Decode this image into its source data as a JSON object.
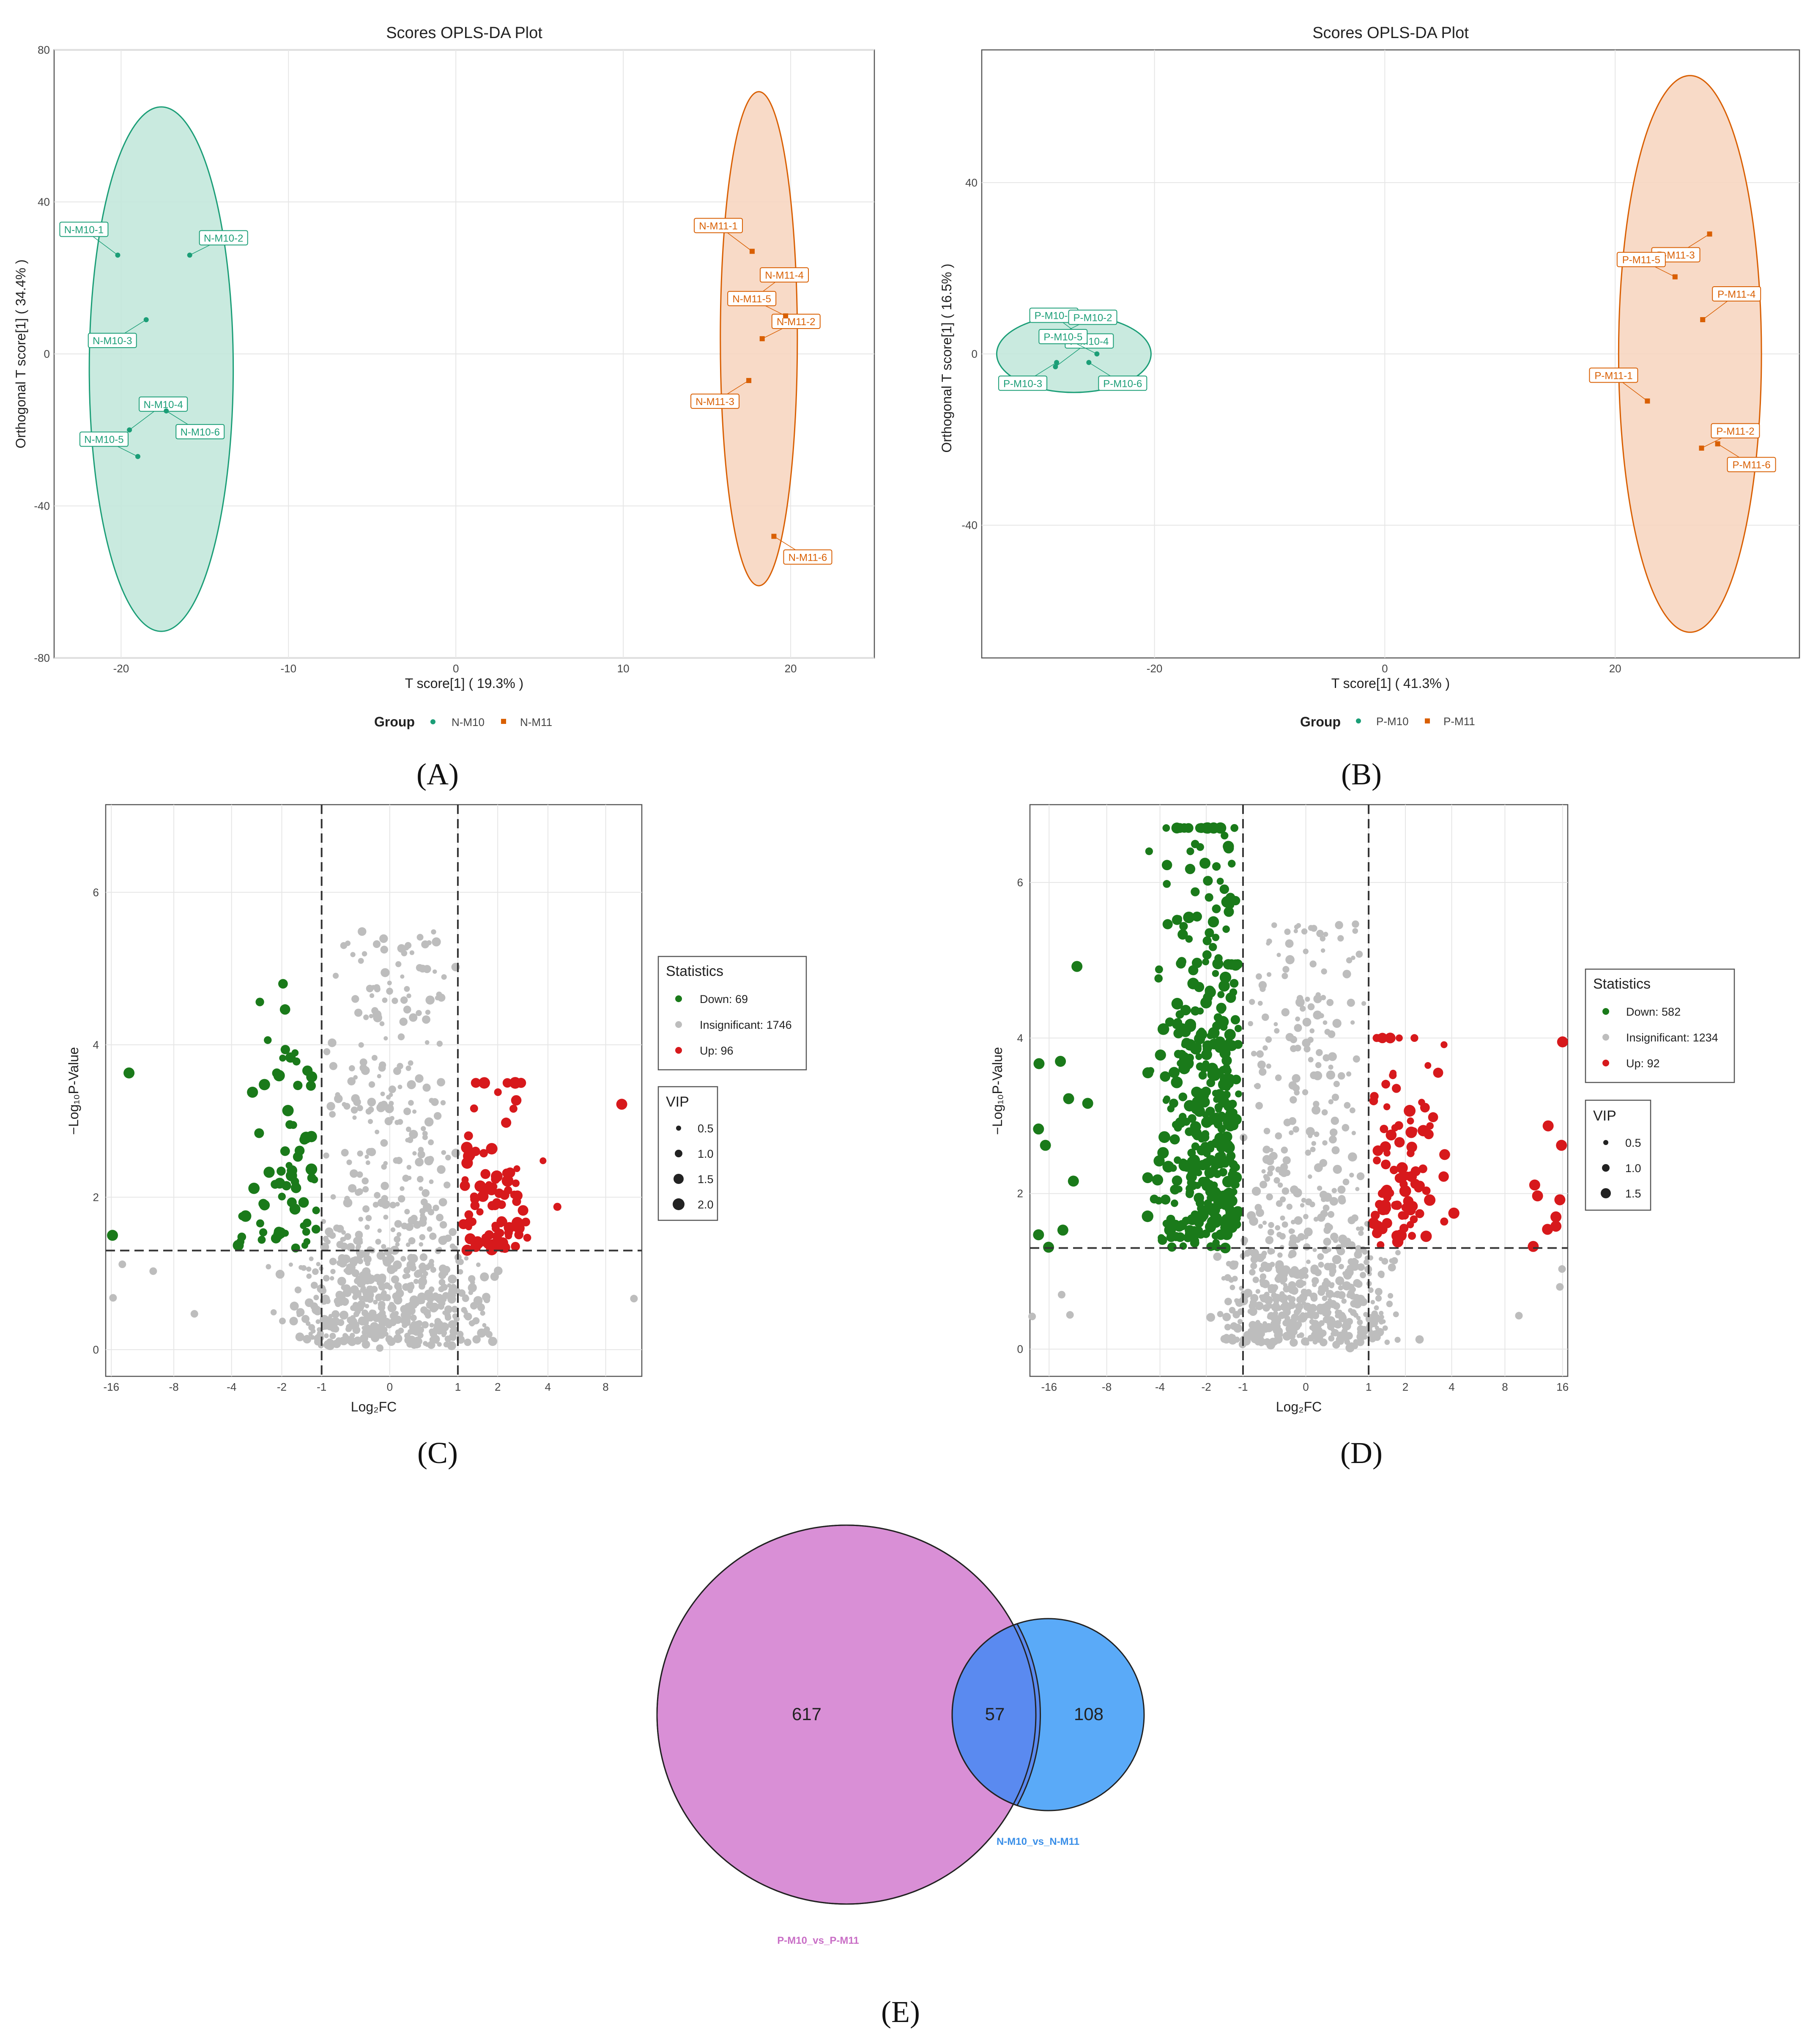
{
  "panels": {
    "A": {
      "label": "(A)"
    },
    "B": {
      "label": "(B)"
    },
    "C": {
      "label": "(C)"
    },
    "D": {
      "label": "(D)"
    },
    "E": {
      "label": "(E)"
    }
  },
  "colors": {
    "green": "#1b9e77",
    "orange": "#d95f02",
    "down": "#1a7a1a",
    "insig": "#bdbdbd",
    "up": "#d7191c",
    "pink": "#d98fd6",
    "blue": "#5aaaf8",
    "overlap": "#5a8af0"
  },
  "chart_data": [
    {
      "id": "A",
      "type": "scatter",
      "title": "Scores OPLS-DA Plot",
      "xlabel": "T score[1] ( 19.3% )",
      "ylabel": "Orthogonal T score[1] ( 34.4% )",
      "xlim": [
        -24,
        25
      ],
      "ylim": [
        -80,
        80
      ],
      "xticks": [
        -20,
        -10,
        0,
        10,
        20
      ],
      "yticks": [
        -80,
        -40,
        0,
        40,
        80
      ],
      "legend_title": "Group",
      "groups": [
        {
          "name": "N-M10",
          "points": [
            {
              "label": "N-M10-1",
              "x": -20.2,
              "y": 26
            },
            {
              "label": "N-M10-2",
              "x": -15.9,
              "y": 26
            },
            {
              "label": "N-M10-3",
              "x": -18.5,
              "y": 9
            },
            {
              "label": "N-M10-4",
              "x": -19.5,
              "y": -20
            },
            {
              "label": "N-M10-5",
              "x": -19.0,
              "y": -27
            },
            {
              "label": "N-M10-6",
              "x": -17.3,
              "y": -15
            }
          ]
        },
        {
          "name": "N-M11",
          "points": [
            {
              "label": "N-M11-1",
              "x": 17.7,
              "y": 27
            },
            {
              "label": "N-M11-2",
              "x": 18.3,
              "y": 4
            },
            {
              "label": "N-M11-3",
              "x": 17.5,
              "y": -7
            },
            {
              "label": "N-M11-4",
              "x": 17.6,
              "y": 14
            },
            {
              "label": "N-M11-5",
              "x": 19.7,
              "y": 10
            },
            {
              "label": "N-M11-6",
              "x": 19.0,
              "y": -48
            }
          ]
        }
      ],
      "ellipses": [
        {
          "group": "N-M10",
          "cx": -17.6,
          "cy": -4,
          "rx": 4.3,
          "ry": 69
        },
        {
          "group": "N-M11",
          "cx": 18.1,
          "cy": 4,
          "rx": 2.3,
          "ry": 65
        }
      ]
    },
    {
      "id": "B",
      "type": "scatter",
      "title": "Scores OPLS-DA Plot",
      "xlabel": "T score[1] ( 41.3% )",
      "ylabel": "Orthogonal T score[1] ( 16.5% )",
      "xlim": [
        -35,
        36
      ],
      "ylim": [
        -71,
        71
      ],
      "xticks": [
        -20,
        0,
        20
      ],
      "yticks": [
        -40,
        0,
        40
      ],
      "legend_title": "Group",
      "groups": [
        {
          "name": "P-M10",
          "points": [
            {
              "label": "P-M10-1",
              "x": -25.8,
              "y": 3
            },
            {
              "label": "P-M10-2",
              "x": -28.3,
              "y": 4.5
            },
            {
              "label": "P-M10-3",
              "x": -28.5,
              "y": -2
            },
            {
              "label": "P-M10-4",
              "x": -28.6,
              "y": -3
            },
            {
              "label": "P-M10-5",
              "x": -25.0,
              "y": 0
            },
            {
              "label": "P-M10-6",
              "x": -25.7,
              "y": -2
            }
          ]
        },
        {
          "name": "P-M11",
          "points": [
            {
              "label": "P-M11-1",
              "x": 22.8,
              "y": -11
            },
            {
              "label": "P-M11-2",
              "x": 27.5,
              "y": -22
            },
            {
              "label": "P-M11-3",
              "x": 28.2,
              "y": 28
            },
            {
              "label": "P-M11-4",
              "x": 27.6,
              "y": 8
            },
            {
              "label": "P-M11-5",
              "x": 25.2,
              "y": 18
            },
            {
              "label": "P-M11-6",
              "x": 28.9,
              "y": -21
            }
          ]
        }
      ],
      "ellipses": [
        {
          "group": "P-M10",
          "cx": -27,
          "cy": 0,
          "rx": 6.7,
          "ry": 9
        },
        {
          "group": "P-M11",
          "cx": 26.5,
          "cy": 0,
          "rx": 6.2,
          "ry": 65
        }
      ]
    },
    {
      "id": "C",
      "type": "scatter",
      "xlabel": "Log₂FC",
      "ylabel": "−Log₁₀P-Value",
      "xlim": [
        -17,
        12
      ],
      "ylim": [
        -0.35,
        7.15
      ],
      "xticks": [
        -16,
        -8,
        -4,
        -2,
        -1,
        0,
        1,
        2,
        4,
        8
      ],
      "yticks": [
        0,
        2,
        4,
        6
      ],
      "hline": 1.3,
      "vlines": [
        -1,
        1
      ],
      "legend": {
        "title": "Statistics",
        "entries": [
          "Down: 69",
          "Insignificant: 1746",
          "Up: 96"
        ],
        "vip_title": "VIP",
        "vip_sizes": [
          "0.5",
          "1.0",
          "1.5",
          "2.0"
        ]
      },
      "counts": {
        "down": 69,
        "insignificant": 1746,
        "up": 96
      },
      "highlight_points": [
        {
          "status": "down",
          "x": -13.2,
          "y": 3.63
        },
        {
          "status": "down",
          "x": -15.8,
          "y": 1.5
        },
        {
          "status": "up",
          "x": 9.6,
          "y": 3.22
        },
        {
          "status": "insignificant",
          "x": -15.7,
          "y": 0.68
        },
        {
          "status": "insignificant",
          "x": -14.2,
          "y": 1.12
        },
        {
          "status": "insignificant",
          "x": -10.1,
          "y": 1.03
        },
        {
          "status": "insignificant",
          "x": -6.3,
          "y": 0.47
        },
        {
          "status": "insignificant",
          "x": 11.0,
          "y": 0.67
        }
      ]
    },
    {
      "id": "D",
      "type": "scatter",
      "xlabel": "Log₂FC",
      "ylabel": "−Log₁₀P-Value",
      "xlim": [
        -20,
        17
      ],
      "ylim": [
        -0.35,
        7.0
      ],
      "xticks": [
        -16,
        -8,
        -4,
        -2,
        -1,
        0,
        1,
        2,
        4,
        8,
        16
      ],
      "yticks": [
        0,
        2,
        4,
        6
      ],
      "hline": 1.3,
      "vlines": [
        -1,
        1
      ],
      "legend": {
        "title": "Statistics",
        "entries": [
          "Down: 582",
          "Insignificant: 1234",
          "Up: 92"
        ],
        "vip_title": "VIP",
        "vip_sizes": [
          "0.5",
          "1.0",
          "1.5"
        ]
      },
      "counts": {
        "down": 582,
        "insignificant": 1234,
        "up": 92
      },
      "highlight_points": [
        {
          "status": "down",
          "x": -11.5,
          "y": 4.92
        },
        {
          "status": "down",
          "x": -18.0,
          "y": 3.67
        },
        {
          "status": "down",
          "x": -18.1,
          "y": 2.83
        },
        {
          "status": "down",
          "x": -16.7,
          "y": 2.62
        },
        {
          "status": "down",
          "x": -14.0,
          "y": 3.7
        },
        {
          "status": "down",
          "x": -12.7,
          "y": 3.22
        },
        {
          "status": "down",
          "x": -10.1,
          "y": 3.16
        },
        {
          "status": "down",
          "x": -12.0,
          "y": 2.16
        },
        {
          "status": "down",
          "x": -18.1,
          "y": 1.47
        },
        {
          "status": "down",
          "x": -13.6,
          "y": 1.53
        },
        {
          "status": "down",
          "x": -16.1,
          "y": 1.31
        },
        {
          "status": "up",
          "x": 16.0,
          "y": 3.95
        },
        {
          "status": "up",
          "x": 13.5,
          "y": 2.87
        },
        {
          "status": "up",
          "x": 15.8,
          "y": 2.62
        },
        {
          "status": "up",
          "x": 11.5,
          "y": 2.11
        },
        {
          "status": "up",
          "x": 11.9,
          "y": 1.97
        },
        {
          "status": "up",
          "x": 15.5,
          "y": 1.92
        },
        {
          "status": "up",
          "x": 14.8,
          "y": 1.7
        },
        {
          "status": "up",
          "x": 13.4,
          "y": 1.54
        },
        {
          "status": "up",
          "x": 14.8,
          "y": 1.58
        },
        {
          "status": "up",
          "x": 11.3,
          "y": 1.32
        },
        {
          "status": "insignificant",
          "x": -19.5,
          "y": 0.42
        },
        {
          "status": "insignificant",
          "x": -13.8,
          "y": 0.7
        },
        {
          "status": "insignificant",
          "x": -12.5,
          "y": 0.44
        },
        {
          "status": "insignificant",
          "x": 9.5,
          "y": 0.43
        },
        {
          "status": "insignificant",
          "x": 15.5,
          "y": 0.8
        },
        {
          "status": "insignificant",
          "x": 15.9,
          "y": 1.03
        }
      ]
    },
    {
      "id": "E",
      "type": "venn",
      "sets": [
        {
          "name": "P-M10_vs_P-M11",
          "only": 617
        },
        {
          "name": "N-M10_vs_N-M11",
          "only": 108
        }
      ],
      "intersection": 57
    }
  ]
}
